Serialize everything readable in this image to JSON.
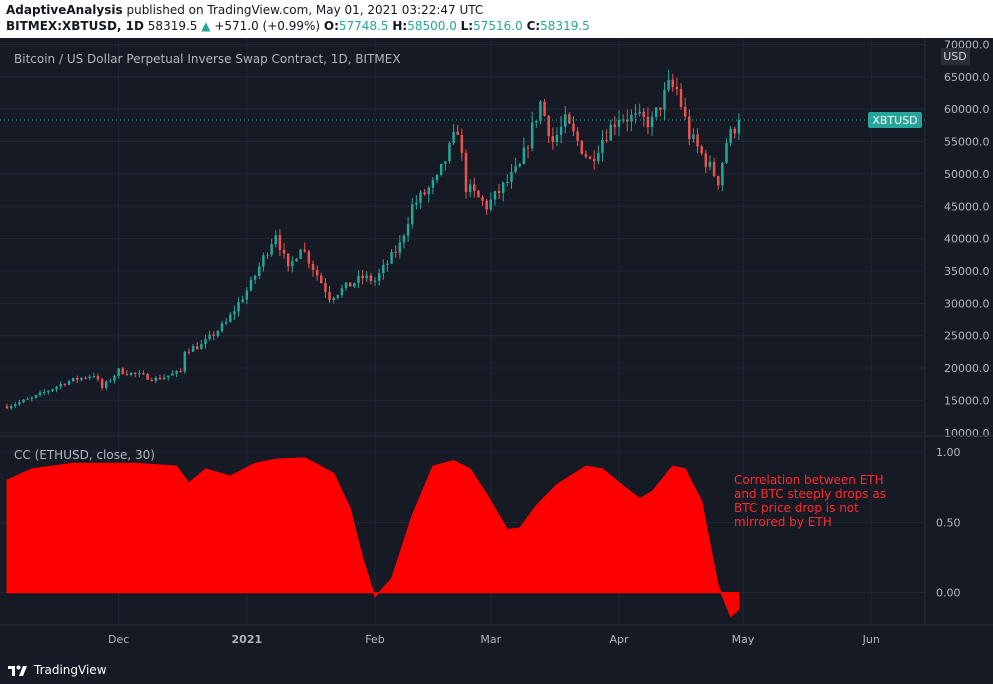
{
  "header": {
    "author": "AdaptiveAnalysis",
    "published": "published on TradingView.com, May 01, 2021 03:22:47 UTC",
    "symbol": "BITMEX:XBTUSD, 1D",
    "last": "58319.5",
    "change_arrow": "▲",
    "change": "+571.0 (+0.99%)",
    "o_label": "O:",
    "o_value": "57748.5",
    "h_label": "H:",
    "h_value": "58500.0",
    "l_label": "L:",
    "l_value": "57516.0",
    "c_label": "C:",
    "c_value": "58319.5"
  },
  "footer": {
    "brand": "TradingView"
  },
  "colors": {
    "background": "#161a25",
    "up_candle": "#26a69a",
    "down_candle": "#ef5350",
    "correlation_fill": "#ff0000",
    "annotation": "#ff2a2a",
    "price_tag": "#26a69a"
  },
  "chart_data": [
    {
      "type": "candlestick",
      "title": "Bitcoin / US Dollar Perpetual Inverse Swap Contract, 1D, BITMEX",
      "currency": "USD",
      "last_price_tag": "XBTUSD",
      "last_price": 58319.5,
      "y_ticks": [
        "70000.0",
        "65000.0",
        "60000.0",
        "55000.0",
        "50000.0",
        "45000.0",
        "40000.0",
        "35000.0",
        "30000.0",
        "25000.0",
        "20000.0",
        "15000.0",
        "10000.0"
      ],
      "ylim": [
        9500,
        71000
      ],
      "x_range": [
        "2020-11-04",
        "2021-06-14"
      ],
      "close_path": [
        [
          "2020-11-04",
          14100
        ],
        [
          "2020-11-10",
          15300
        ],
        [
          "2020-11-18",
          17800
        ],
        [
          "2020-11-25",
          19000
        ],
        [
          "2020-11-27",
          16900
        ],
        [
          "2020-12-01",
          19600
        ],
        [
          "2020-12-10",
          18300
        ],
        [
          "2020-12-16",
          19400
        ],
        [
          "2020-12-17",
          22800
        ],
        [
          "2020-12-21",
          23500
        ],
        [
          "2020-12-27",
          27000
        ],
        [
          "2021-01-02",
          33000
        ],
        [
          "2021-01-08",
          41000
        ],
        [
          "2021-01-11",
          35000
        ],
        [
          "2021-01-14",
          39000
        ],
        [
          "2021-01-21",
          31000
        ],
        [
          "2021-01-25",
          32500
        ],
        [
          "2021-01-29",
          34000
        ],
        [
          "2021-02-01",
          33500
        ],
        [
          "2021-02-07",
          39000
        ],
        [
          "2021-02-10",
          45000
        ],
        [
          "2021-02-16",
          49000
        ],
        [
          "2021-02-21",
          57000
        ],
        [
          "2021-02-23",
          48000
        ],
        [
          "2021-02-28",
          45000
        ],
        [
          "2021-03-04",
          48000
        ],
        [
          "2021-03-08",
          51000
        ],
        [
          "2021-03-13",
          61000
        ],
        [
          "2021-03-16",
          55000
        ],
        [
          "2021-03-19",
          58000
        ],
        [
          "2021-03-25",
          52000
        ],
        [
          "2021-03-28",
          55500
        ],
        [
          "2021-04-01",
          59000
        ],
        [
          "2021-04-05",
          58500
        ],
        [
          "2021-04-09",
          58000
        ],
        [
          "2021-04-13",
          63500
        ],
        [
          "2021-04-15",
          63000
        ],
        [
          "2021-04-18",
          56000
        ],
        [
          "2021-04-22",
          52000
        ],
        [
          "2021-04-25",
          49000
        ],
        [
          "2021-04-27",
          55000
        ],
        [
          "2021-04-30",
          58319.5
        ]
      ]
    },
    {
      "type": "area",
      "title": "CC (ETHUSD, close, 30)",
      "y_ticks": [
        "1.00",
        "0.50",
        "0.00"
      ],
      "ylim": [
        -0.23,
        1.1
      ],
      "x_ticks": [
        "Dec",
        "2021",
        "Feb",
        "Mar",
        "Apr",
        "May",
        "Jun"
      ],
      "x": [
        "2020-11-04",
        "2020-11-10",
        "2020-11-20",
        "2020-12-05",
        "2020-12-15",
        "2020-12-18",
        "2020-12-22",
        "2020-12-28",
        "2021-01-03",
        "2021-01-08",
        "2021-01-15",
        "2021-01-22",
        "2021-01-26",
        "2021-01-29",
        "2021-02-01",
        "2021-02-05",
        "2021-02-10",
        "2021-02-15",
        "2021-02-20",
        "2021-02-24",
        "2021-02-28",
        "2021-03-05",
        "2021-03-08",
        "2021-03-12",
        "2021-03-17",
        "2021-03-24",
        "2021-03-28",
        "2021-04-02",
        "2021-04-06",
        "2021-04-09",
        "2021-04-14",
        "2021-04-17",
        "2021-04-21",
        "2021-04-25",
        "2021-04-28",
        "2021-04-30"
      ],
      "values": [
        0.8,
        0.88,
        0.92,
        0.92,
        0.9,
        0.78,
        0.88,
        0.83,
        0.92,
        0.95,
        0.96,
        0.85,
        0.6,
        0.25,
        -0.03,
        0.1,
        0.55,
        0.9,
        0.94,
        0.88,
        0.7,
        0.45,
        0.46,
        0.62,
        0.77,
        0.9,
        0.88,
        0.76,
        0.67,
        0.72,
        0.9,
        0.88,
        0.65,
        0.05,
        -0.17,
        -0.12
      ],
      "annotation": [
        "Correlation between ETH",
        "and BTC steeply drops as",
        "BTC price drop is not",
        "mirrored by ETH"
      ]
    }
  ]
}
